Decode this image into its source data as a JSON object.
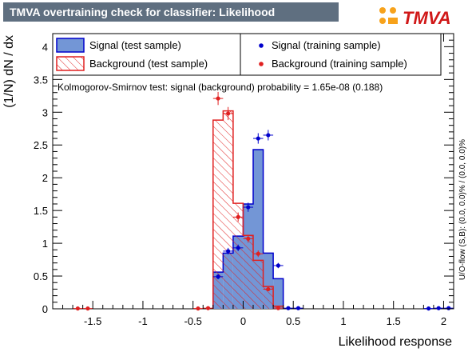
{
  "title": "TMVA overtraining check for classifier: Likelihood",
  "logo_text": "TMVA",
  "colors": {
    "signal_fill": "#7396d6",
    "signal_line": "#0000cc",
    "background_hatch": "#e02020",
    "title_bg": "#5f6f80",
    "logo_orange": "#f7a21b"
  },
  "chart_data": {
    "type": "bar",
    "title": "TMVA overtraining check for classifier: Likelihood",
    "xlabel": "Likelihood response",
    "ylabel": "(1/N) dN / dx",
    "xlim": [
      -1.9,
      2.1
    ],
    "ylim": [
      0,
      4.2
    ],
    "xticks": [
      -1.5,
      -1,
      -0.5,
      0,
      0.5,
      1,
      1.5,
      2
    ],
    "xtick_labels": [
      "-1.5",
      "-1",
      "-0.5",
      "0",
      "0.5",
      "1",
      "1.5",
      "2"
    ],
    "yticks": [
      0,
      0.5,
      1,
      1.5,
      2,
      2.5,
      3,
      3.5,
      4
    ],
    "ytick_labels": [
      "0",
      "0.5",
      "1",
      "1.5",
      "2",
      "2.5",
      "3",
      "3.5",
      "4"
    ],
    "bin_width": 0.1,
    "ks_text": "Kolmogorov-Smirnov test: signal (background) probability = 1.65e-08 (0.188)",
    "side_text": "U/O-flow (S,B): (0.0, 0.0)% / (0.0, 0.0)%",
    "legend": {
      "placement": "top",
      "entries": [
        {
          "key": "signal_test",
          "label": "Signal (test sample)"
        },
        {
          "key": "signal_train",
          "label": "Signal (training sample)"
        },
        {
          "key": "background_test",
          "label": "Background (test sample)"
        },
        {
          "key": "background_train",
          "label": "Background (training sample)"
        }
      ]
    },
    "series": [
      {
        "name": "Signal (test sample)",
        "kind": "histogram",
        "bins": [
          {
            "x": -0.25,
            "y": 0.56
          },
          {
            "x": -0.15,
            "y": 0.85
          },
          {
            "x": -0.05,
            "y": 1.11
          },
          {
            "x": 0.05,
            "y": 1.6
          },
          {
            "x": 0.15,
            "y": 2.43
          },
          {
            "x": 0.25,
            "y": 0.85
          },
          {
            "x": 0.35,
            "y": 0.46
          }
        ]
      },
      {
        "name": "Background (test sample)",
        "kind": "histogram",
        "bins": [
          {
            "x": -0.25,
            "y": 2.88
          },
          {
            "x": -0.15,
            "y": 3.02
          },
          {
            "x": -0.05,
            "y": 1.61
          },
          {
            "x": 0.05,
            "y": 1.12
          },
          {
            "x": 0.15,
            "y": 0.74
          },
          {
            "x": 0.25,
            "y": 0.34
          },
          {
            "x": 0.35,
            "y": 0.04
          }
        ]
      },
      {
        "name": "Signal (training sample)",
        "kind": "points",
        "points": [
          {
            "x": -0.25,
            "y": 0.49,
            "err": 0.04
          },
          {
            "x": -0.15,
            "y": 0.88,
            "err": 0.05
          },
          {
            "x": -0.05,
            "y": 0.93,
            "err": 0.05
          },
          {
            "x": 0.05,
            "y": 1.55,
            "err": 0.07
          },
          {
            "x": 0.15,
            "y": 2.6,
            "err": 0.08
          },
          {
            "x": 0.25,
            "y": 2.65,
            "err": 0.08
          },
          {
            "x": 0.35,
            "y": 0.66,
            "err": 0.04
          },
          {
            "x": 0.45,
            "y": 0.01,
            "err": 0.01
          },
          {
            "x": 0.55,
            "y": 0.01,
            "err": 0.01
          },
          {
            "x": 1.85,
            "y": 0.005,
            "err": 0.005
          },
          {
            "x": 1.95,
            "y": 0.01,
            "err": 0.005
          },
          {
            "x": 2.05,
            "y": 0.01,
            "err": 0.005
          }
        ]
      },
      {
        "name": "Background (training sample)",
        "kind": "points",
        "points": [
          {
            "x": -1.65,
            "y": 0.005,
            "err": 0.005
          },
          {
            "x": -1.55,
            "y": 0.005,
            "err": 0.005
          },
          {
            "x": -0.45,
            "y": 0.005,
            "err": 0.005
          },
          {
            "x": -0.35,
            "y": 0.01,
            "err": 0.01
          },
          {
            "x": -0.25,
            "y": 3.21,
            "err": 0.1
          },
          {
            "x": -0.15,
            "y": 2.98,
            "err": 0.1
          },
          {
            "x": -0.05,
            "y": 1.4,
            "err": 0.07
          },
          {
            "x": 0.05,
            "y": 1.07,
            "err": 0.06
          },
          {
            "x": 0.15,
            "y": 0.84,
            "err": 0.05
          },
          {
            "x": 0.25,
            "y": 0.3,
            "err": 0.03
          },
          {
            "x": 0.35,
            "y": 0.01,
            "err": 0.01
          }
        ]
      }
    ]
  }
}
